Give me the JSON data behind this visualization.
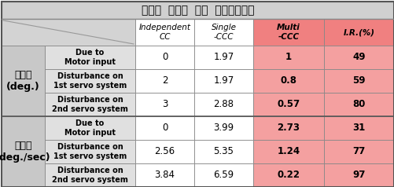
{
  "title": "동기화  오차에  대한  제어응답결과",
  "col_headers": [
    "Independent\nCC",
    "Single\n-CCC",
    "Multi\n-CCC",
    "I.R.(%)"
  ],
  "row_group_labels": [
    "각위치\n(deg.)",
    "각속도\n(deg./sec)"
  ],
  "row_labels": [
    "Due to\nMotor input",
    "Disturbance on\n1st servo system",
    "Disturbance on\n2nd servo system",
    "Due to\nMotor input",
    "Disturbance on\n1st servo system",
    "Disturbance on\n2nd servo system"
  ],
  "data_display": [
    [
      "0",
      "1.97",
      "1",
      "49"
    ],
    [
      "2",
      "1.97",
      "0.8",
      "59"
    ],
    [
      "3",
      "2.88",
      "0.57",
      "80"
    ],
    [
      "0",
      "3.99",
      "2.73",
      "31"
    ],
    [
      "2.56",
      "5.35",
      "1.24",
      "77"
    ],
    [
      "3.84",
      "6.59",
      "0.22",
      "97"
    ]
  ],
  "title_bg": "#d0d0d0",
  "header_bg": "#d3d3d3",
  "pink_header_bg": "#f08080",
  "pink_cell_bg": "#f4a0a0",
  "white_cell_bg": "#ffffff",
  "gray_group_bg": "#c8c8c8",
  "gray_row_bg": "#e0e0e0",
  "border_color": "#888888",
  "fig_w": 5.01,
  "fig_h": 2.38,
  "dpi": 100
}
